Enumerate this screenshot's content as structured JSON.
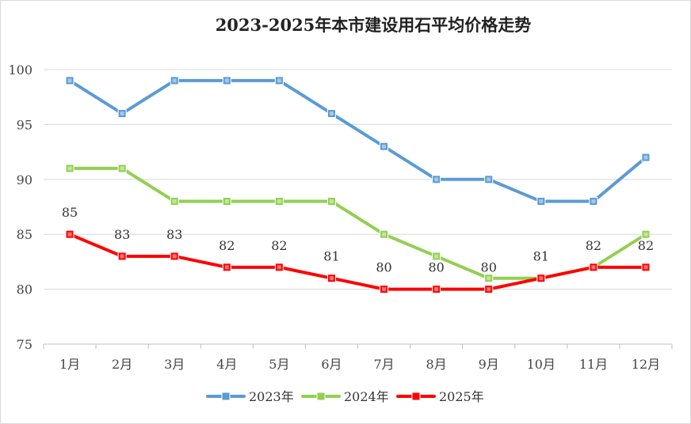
{
  "chart_data": {
    "type": "line",
    "title": "2023-2025年本市建设用石平均价格走势",
    "xlabel": "",
    "ylabel": "",
    "categories": [
      "1月",
      "2月",
      "3月",
      "4月",
      "5月",
      "6月",
      "7月",
      "8月",
      "9月",
      "10月",
      "11月",
      "12月"
    ],
    "ylim": [
      75,
      100
    ],
    "yticks": [
      75,
      80,
      85,
      90,
      95,
      100
    ],
    "grid": true,
    "legend_position": "bottom",
    "series": [
      {
        "name": "2023年",
        "color": "#5b9bd5",
        "marker_color": "#5b9bd5",
        "data_labels": false,
        "values": [
          99,
          96,
          99,
          99,
          99,
          96,
          93,
          90,
          90,
          88,
          88,
          92
        ]
      },
      {
        "name": "2024年",
        "color": "#92d050",
        "marker_color": "#92d050",
        "data_labels": false,
        "values": [
          91,
          91,
          88,
          88,
          88,
          88,
          85,
          83,
          81,
          81,
          82,
          85
        ]
      },
      {
        "name": "2025年",
        "color": "#ff0000",
        "marker_color": "#ff0000",
        "data_labels": true,
        "values": [
          85,
          83,
          83,
          82,
          82,
          81,
          80,
          80,
          80,
          81,
          82,
          82
        ]
      }
    ]
  }
}
